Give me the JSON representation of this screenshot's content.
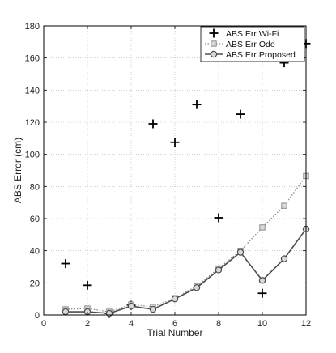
{
  "chart_data": {
    "type": "line",
    "title": "",
    "xlabel": "Trial Number",
    "ylabel": "ABS Error (cm)",
    "xlim": [
      0,
      12
    ],
    "ylim": [
      0,
      180
    ],
    "xticks": [
      0,
      2,
      4,
      6,
      8,
      10,
      12
    ],
    "yticks": [
      0,
      20,
      40,
      60,
      80,
      100,
      120,
      140,
      160,
      180
    ],
    "grid": true,
    "legend_position": "top-right",
    "x": [
      1,
      2,
      3,
      4,
      5,
      6,
      7,
      8,
      9,
      10,
      11,
      12
    ],
    "series": [
      {
        "name": "ABS Err Wi-Fi",
        "style": "markers-only",
        "marker": "plus",
        "color": "#000000",
        "values": [
          32,
          18.5,
          1,
          6,
          119,
          107.5,
          131,
          60.5,
          125,
          13.5,
          157,
          169
        ]
      },
      {
        "name": "ABS Err Odo",
        "style": "dotted",
        "marker": "square",
        "color": "#8c8c8c",
        "values": [
          3.5,
          4,
          2,
          6.5,
          5,
          10.5,
          18,
          29,
          40,
          54.5,
          68,
          86.5
        ]
      },
      {
        "name": "ABS Err Proposed",
        "style": "solid",
        "marker": "circle",
        "color": "#4d4d4d",
        "values": [
          2,
          2,
          1,
          5.5,
          3.5,
          10,
          17,
          28,
          39,
          21.5,
          35,
          53.5
        ]
      }
    ]
  }
}
